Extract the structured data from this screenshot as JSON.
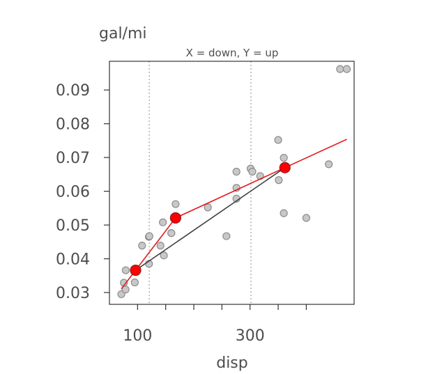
{
  "chart_data": {
    "type": "scatter",
    "xlabel": "disp",
    "ylabel": "gal/mi",
    "subtitle": "X = down, Y = up",
    "xlim": [
      50,
      485
    ],
    "ylim": [
      0.0265,
      0.0985
    ],
    "x_ticks": [
      100,
      150,
      200,
      250,
      300,
      350,
      400
    ],
    "x_tick_labels": [
      "100",
      "",
      "",
      "",
      "300",
      "",
      ""
    ],
    "y_ticks": [
      0.03,
      0.04,
      0.05,
      0.06,
      0.07,
      0.08,
      0.09
    ],
    "y_tick_labels": [
      "0.03",
      "0.04",
      "0.05",
      "0.06",
      "0.07",
      "0.08",
      "0.09"
    ],
    "vlines": [
      120.8,
      301.6
    ],
    "points": [
      [
        71.1,
        0.0295
      ],
      [
        75.7,
        0.0329
      ],
      [
        78.7,
        0.0309
      ],
      [
        79.0,
        0.0366
      ],
      [
        95.1,
        0.033
      ],
      [
        108.0,
        0.0439
      ],
      [
        120.1,
        0.0465
      ],
      [
        120.3,
        0.0385
      ],
      [
        121.0,
        0.0467
      ],
      [
        140.8,
        0.0439
      ],
      [
        145.0,
        0.0508
      ],
      [
        146.7,
        0.041
      ],
      [
        160.0,
        0.0476
      ],
      [
        160.0,
        0.0476
      ],
      [
        167.6,
        0.0521
      ],
      [
        167.6,
        0.0562
      ],
      [
        225.0,
        0.0552
      ],
      [
        258.0,
        0.0467
      ],
      [
        275.8,
        0.0578
      ],
      [
        275.8,
        0.061
      ],
      [
        275.8,
        0.0658
      ],
      [
        301.0,
        0.0667
      ],
      [
        304.0,
        0.0658
      ],
      [
        318.0,
        0.0645
      ],
      [
        350.0,
        0.0752
      ],
      [
        351.0,
        0.0633
      ],
      [
        360.0,
        0.0699
      ],
      [
        360.0,
        0.0535
      ],
      [
        400.0,
        0.0521
      ],
      [
        440.0,
        0.068
      ],
      [
        460.0,
        0.0962
      ],
      [
        472.0,
        0.0962
      ]
    ],
    "series": [
      {
        "color": "#e41a1c",
        "values": [
          [
            71.1,
            0.0311
          ],
          [
            96.5,
            0.0366
          ],
          [
            167.6,
            0.0521
          ],
          [
            362.0,
            0.067
          ],
          [
            472.0,
            0.0754
          ]
        ]
      },
      {
        "color": "#404040",
        "values": [
          [
            96.5,
            0.0366
          ],
          [
            362.0,
            0.067
          ]
        ]
      }
    ],
    "highlight_points": [
      [
        96.5,
        0.0366
      ],
      [
        167.6,
        0.0521
      ],
      [
        362.0,
        0.067
      ]
    ],
    "colors": {
      "point_fill": "#c8c8c8",
      "point_stroke": "#8c8c8c",
      "highlight_fill": "#ff0000",
      "highlight_stroke": "#8b1a1a",
      "vline": "#a0a0a0",
      "frame": "#333333"
    }
  }
}
